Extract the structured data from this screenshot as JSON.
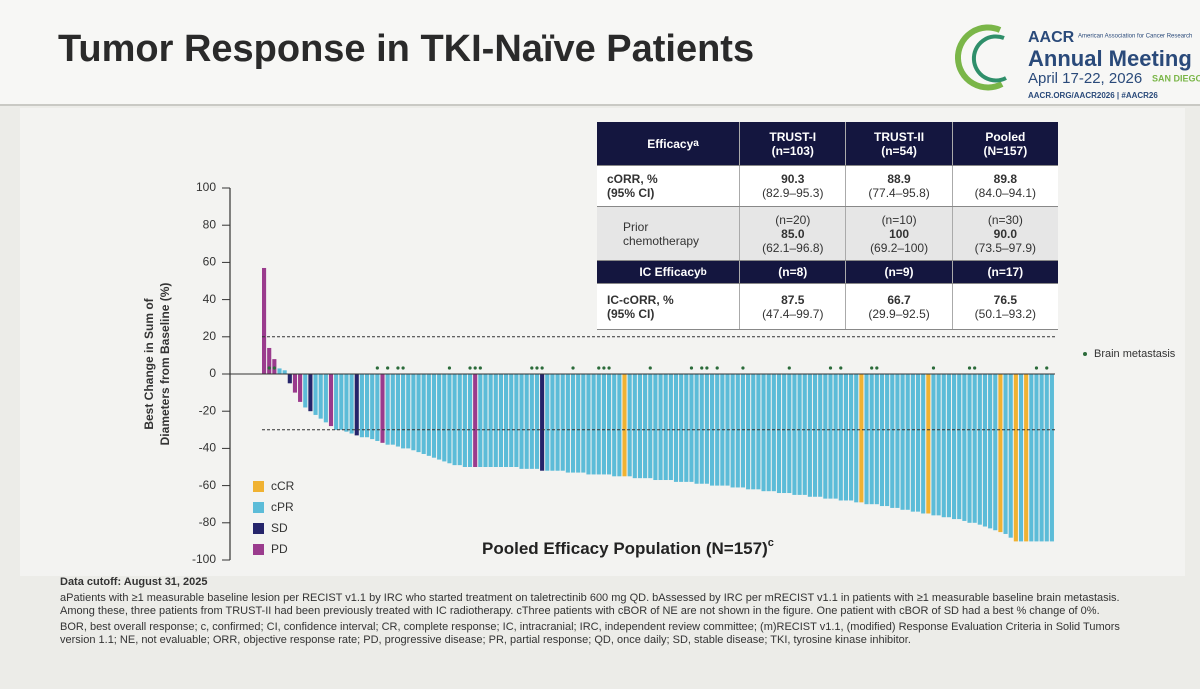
{
  "header": {
    "title": "Tumor Response in TKI-Naïve Patients",
    "logo": {
      "mark": "AACR",
      "org": "American Association for Cancer Research",
      "event": "Annual Meeting",
      "dates": "April 17-22, 2026",
      "city": "SAN DIEGO",
      "url": "AACR.ORG/AACR2026 | #AACR26"
    }
  },
  "table": {
    "header": {
      "label": "Efficacy",
      "sup": "a",
      "cols": [
        [
          "TRUST-I",
          "(n=103)"
        ],
        [
          "TRUST-II",
          "(n=54)"
        ],
        [
          "Pooled",
          "(N=157)"
        ]
      ]
    },
    "corr": {
      "label": [
        "cORR, %",
        "(95% CI)"
      ],
      "cells": [
        [
          "90.3",
          "(82.9–95.3)"
        ],
        [
          "88.9",
          "(77.4–95.8)"
        ],
        [
          "89.8",
          "(84.0–94.1)"
        ]
      ]
    },
    "prior": {
      "label": [
        "Prior",
        "chemotherapy"
      ],
      "cells": [
        [
          "(n=20)",
          "85.0",
          "(62.1–96.8)"
        ],
        [
          "(n=10)",
          "100",
          "(69.2–100)"
        ],
        [
          "(n=30)",
          "90.0",
          "(73.5–97.9)"
        ]
      ]
    },
    "ic_header": {
      "label": "IC Efficacy",
      "sup": "b",
      "cells": [
        "(n=8)",
        "(n=9)",
        "(n=17)"
      ]
    },
    "ic_corr": {
      "label": [
        "IC-cORR, %",
        "(95% CI)"
      ],
      "cells": [
        [
          "87.5",
          "(47.4–99.7)"
        ],
        [
          "66.7",
          "(29.9–92.5)"
        ],
        [
          "76.5",
          "(50.1–93.2)"
        ]
      ]
    }
  },
  "chart_data": {
    "type": "waterfall",
    "y_label": [
      "Best Change in Sum of",
      "Diameters from Baseline (%)"
    ],
    "x_label": "Pooled Efficacy Population (N=157)",
    "x_label_sup": "c",
    "ylim": [
      -100,
      100
    ],
    "yticks": [
      -100,
      -80,
      -60,
      -40,
      -20,
      0,
      20,
      40,
      60,
      80,
      100
    ],
    "reference_lines": [
      20,
      -30
    ],
    "legend": [
      {
        "name": "cCR",
        "color": "#f0b232"
      },
      {
        "name": "cPR",
        "color": "#5cbcd8"
      },
      {
        "name": "SD",
        "color": "#25246a"
      },
      {
        "name": "PD",
        "color": "#9a3b8d"
      }
    ],
    "values": [
      57,
      14,
      8,
      3,
      2,
      -5,
      -10,
      -15,
      -18,
      -20,
      -22,
      -24,
      -26,
      -28,
      -30,
      -30,
      -31,
      -32,
      -33,
      -34,
      -34,
      -35,
      -36,
      -37,
      -38,
      -38,
      -39,
      -40,
      -40,
      -41,
      -42,
      -43,
      -44,
      -45,
      -46,
      -47,
      -48,
      -49,
      -49,
      -50,
      -50,
      -50,
      -50,
      -50,
      -50,
      -50,
      -50,
      -50,
      -50,
      -50,
      -51,
      -51,
      -51,
      -51,
      -52,
      -52,
      -52,
      -52,
      -52,
      -53,
      -53,
      -53,
      -53,
      -54,
      -54,
      -54,
      -54,
      -54,
      -55,
      -55,
      -55,
      -55,
      -56,
      -56,
      -56,
      -56,
      -57,
      -57,
      -57,
      -57,
      -58,
      -58,
      -58,
      -58,
      -59,
      -59,
      -59,
      -60,
      -60,
      -60,
      -60,
      -61,
      -61,
      -61,
      -62,
      -62,
      -62,
      -63,
      -63,
      -63,
      -64,
      -64,
      -64,
      -65,
      -65,
      -65,
      -66,
      -66,
      -66,
      -67,
      -67,
      -67,
      -68,
      -68,
      -68,
      -69,
      -69,
      -70,
      -70,
      -70,
      -71,
      -71,
      -72,
      -72,
      -73,
      -73,
      -74,
      -74,
      -75,
      -75,
      -76,
      -76,
      -77,
      -77,
      -78,
      -78,
      -79,
      -80,
      -80,
      -81,
      -82,
      -83,
      -84,
      -85,
      -86,
      -88,
      -90,
      -90,
      -90,
      -90,
      -90,
      -90,
      -90,
      -90
    ],
    "bar_class": [
      3,
      3,
      3,
      1,
      1,
      2,
      3,
      3,
      1,
      2,
      1,
      1,
      1,
      3,
      1,
      1,
      1,
      1,
      2,
      1,
      1,
      1,
      1,
      3,
      1,
      1,
      1,
      1,
      1,
      1,
      1,
      1,
      1,
      1,
      1,
      1,
      1,
      1,
      1,
      1,
      1,
      3,
      1,
      1,
      1,
      1,
      1,
      1,
      1,
      1,
      1,
      1,
      1,
      1,
      2,
      1,
      1,
      1,
      1,
      1,
      1,
      1,
      1,
      1,
      1,
      1,
      1,
      1,
      1,
      1,
      0,
      1,
      1,
      1,
      1,
      1,
      1,
      1,
      1,
      1,
      1,
      1,
      1,
      1,
      1,
      1,
      1,
      1,
      1,
      1,
      1,
      1,
      1,
      1,
      1,
      1,
      1,
      1,
      1,
      1,
      1,
      1,
      1,
      1,
      1,
      1,
      1,
      1,
      1,
      1,
      1,
      1,
      1,
      1,
      1,
      1,
      0,
      1,
      1,
      1,
      1,
      1,
      1,
      1,
      1,
      1,
      1,
      1,
      1,
      0,
      1,
      1,
      1,
      1,
      1,
      1,
      1,
      1,
      1,
      1,
      1,
      1,
      1,
      0,
      1,
      1,
      0,
      1,
      0,
      1,
      1,
      1,
      1,
      1
    ],
    "brain_metastasis_label": "Brain metastasis",
    "brain_metastasis_bars": [
      1,
      2,
      22,
      24,
      26,
      27,
      36,
      40,
      41,
      42,
      52,
      53,
      54,
      60,
      65,
      66,
      67,
      75,
      83,
      85,
      86,
      88,
      93,
      102,
      110,
      112,
      118,
      119,
      130,
      137,
      138,
      150,
      152
    ]
  },
  "footnotes": [
    "Data cutoff: August 31, 2025",
    "aPatients with ≥1 measurable baseline lesion per RECIST v1.1 by IRC who started treatment on taletrectinib 600 mg QD. bAssessed by IRC per mRECIST v1.1 in patients with ≥1 measurable baseline brain metastasis. Among these, three patients from TRUST-II had been previously treated with IC radiotherapy. cThree patients with cBOR of NE are not shown in the figure. One patient with cBOR of SD had a best % change of 0%.",
    "BOR, best overall response; c, confirmed; CI, confidence interval; CR, complete response; IC, intracranial; IRC, independent review committee; (m)RECIST v1.1, (modified) Response Evaluation Criteria in Solid Tumors version 1.1; NE, not evaluable; ORR, objective response rate; PD, progressive disease; PR, partial response; QD, once daily; SD, stable disease; TKI, tyrosine kinase inhibitor."
  ]
}
